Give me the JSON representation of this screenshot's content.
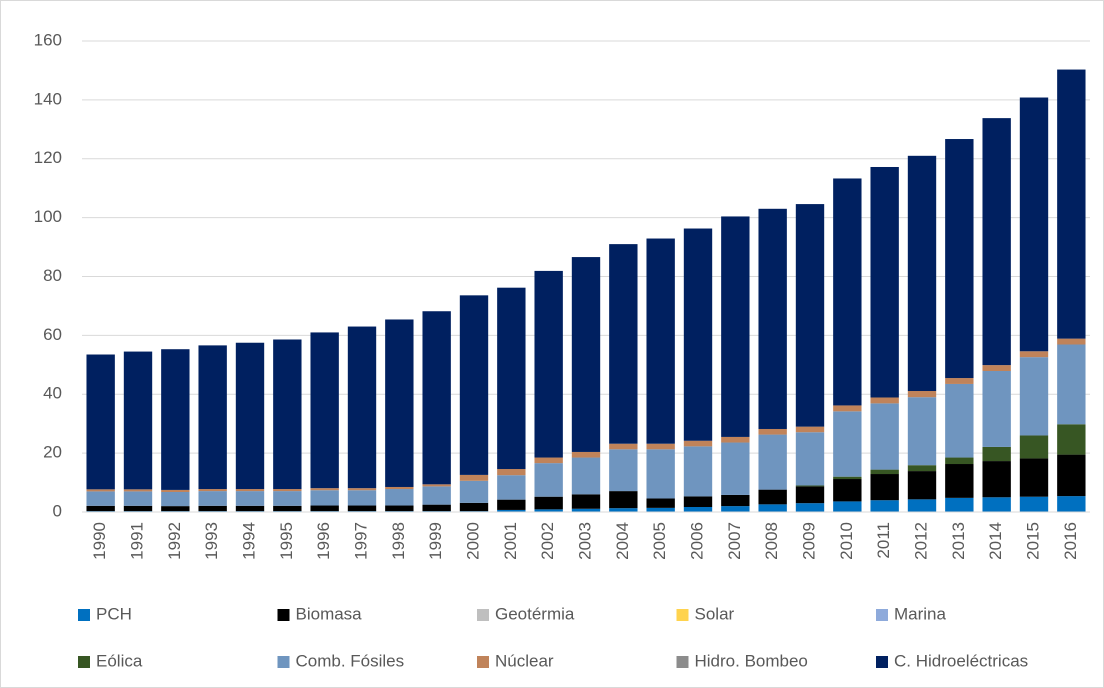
{
  "chart_data": {
    "type": "stacked_bar",
    "categories": [
      "1990",
      "1991",
      "1992",
      "1993",
      "1994",
      "1995",
      "1996",
      "1997",
      "1998",
      "1999",
      "2000",
      "2001",
      "2002",
      "2003",
      "2004",
      "2005",
      "2006",
      "2007",
      "2008",
      "2009",
      "2010",
      "2011",
      "2012",
      "2013",
      "2014",
      "2015",
      "2016"
    ],
    "ylim": [
      0,
      160
    ],
    "yticks": [
      0,
      20,
      40,
      60,
      80,
      100,
      120,
      140,
      160
    ],
    "grid": true,
    "legend": "bottom",
    "series": [
      {
        "name": "PCH",
        "color": "#0070c0",
        "values": [
          0.3,
          0.3,
          0.3,
          0.3,
          0.3,
          0.3,
          0.3,
          0.3,
          0.3,
          0.3,
          0.3,
          0.7,
          0.9,
          1.1,
          1.3,
          1.4,
          1.7,
          2.0,
          2.6,
          3.0,
          3.6,
          4.0,
          4.3,
          4.8,
          5.0,
          5.2,
          5.4
        ]
      },
      {
        "name": "Biomasa",
        "color": "#000000",
        "values": [
          1.8,
          1.8,
          1.7,
          1.8,
          1.8,
          1.8,
          1.9,
          1.9,
          1.9,
          2.2,
          2.8,
          3.5,
          4.3,
          4.9,
          5.8,
          3.2,
          3.6,
          3.8,
          5.0,
          5.7,
          7.6,
          8.9,
          9.6,
          11.5,
          12.3,
          13.0,
          14.1
        ]
      },
      {
        "name": "Geotérmia",
        "color": "#bfbfbf",
        "values": [
          0,
          0,
          0,
          0,
          0,
          0,
          0,
          0,
          0,
          0,
          0,
          0,
          0,
          0,
          0,
          0,
          0,
          0,
          0,
          0,
          0,
          0,
          0,
          0,
          0,
          0,
          0
        ]
      },
      {
        "name": "Solar",
        "color": "#ffd34e",
        "values": [
          0,
          0,
          0,
          0,
          0,
          0,
          0,
          0,
          0,
          0,
          0,
          0,
          0,
          0,
          0,
          0,
          0,
          0,
          0,
          0,
          0,
          0,
          0,
          0,
          0,
          0,
          0
        ]
      },
      {
        "name": "Marina",
        "color": "#8eaadb",
        "values": [
          0,
          0,
          0,
          0,
          0,
          0,
          0,
          0,
          0,
          0,
          0,
          0,
          0,
          0,
          0,
          0,
          0,
          0,
          0,
          0,
          0,
          0,
          0,
          0,
          0,
          0,
          0
        ]
      },
      {
        "name": "Eólica",
        "color": "#375623",
        "values": [
          0,
          0,
          0,
          0,
          0,
          0,
          0,
          0,
          0,
          0,
          0,
          0,
          0,
          0,
          0,
          0,
          0,
          0,
          0,
          0.3,
          0.8,
          1.5,
          2.0,
          2.2,
          4.8,
          7.8,
          10.3
        ]
      },
      {
        "name": "Comb. Fósiles",
        "color": "#6f95bf",
        "values": [
          4.9,
          4.9,
          4.8,
          5.0,
          5.0,
          5.0,
          5.2,
          5.2,
          5.6,
          6.2,
          7.5,
          8.3,
          11.4,
          12.5,
          14.2,
          16.7,
          17.0,
          17.8,
          18.7,
          18.1,
          22.2,
          22.5,
          23.1,
          25.0,
          25.8,
          26.6,
          27.1
        ]
      },
      {
        "name": "Núclear",
        "color": "#c0835a",
        "values": [
          0.7,
          0.7,
          0.7,
          0.7,
          0.7,
          0.7,
          0.7,
          0.7,
          0.7,
          0.7,
          2.0,
          2.1,
          1.9,
          1.9,
          1.9,
          1.9,
          1.9,
          1.9,
          1.9,
          1.9,
          2.0,
          2.0,
          2.1,
          2.0,
          2.0,
          2.0,
          2.0
        ]
      },
      {
        "name": "Hidro. Bombeo",
        "color": "#8c8c8c",
        "values": [
          0,
          0,
          0,
          0,
          0,
          0,
          0,
          0,
          0,
          0,
          0,
          0,
          0,
          0,
          0,
          0,
          0,
          0,
          0,
          0,
          0,
          0,
          0,
          0,
          0,
          0,
          0
        ]
      },
      {
        "name": "C. Hidroeléctricas",
        "color": "#002060",
        "values": [
          45.8,
          46.8,
          47.8,
          48.8,
          49.7,
          50.8,
          52.9,
          54.9,
          56.9,
          58.8,
          61.0,
          61.6,
          63.4,
          66.2,
          67.8,
          69.7,
          72.1,
          74.9,
          74.8,
          75.6,
          77.1,
          78.3,
          79.9,
          81.2,
          83.9,
          86.2,
          91.4
        ]
      }
    ]
  }
}
